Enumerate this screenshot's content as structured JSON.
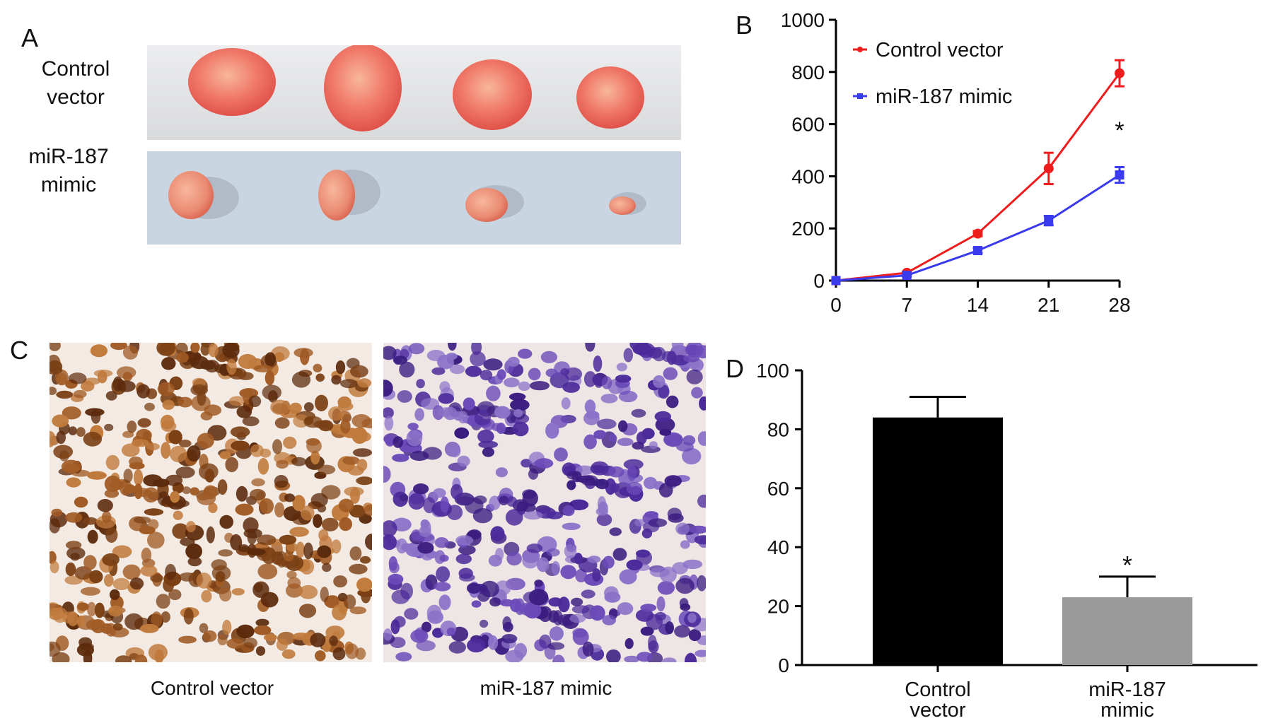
{
  "panels": {
    "a": {
      "letter": "A",
      "row_labels": [
        {
          "line1": "Control",
          "line2": "vector"
        },
        {
          "line1": "miR-187",
          "line2": "mimic"
        }
      ]
    },
    "b": {
      "letter": "B",
      "significance": "*"
    },
    "c": {
      "letter": "C",
      "captions": [
        "Control vector",
        "miR-187 mimic"
      ],
      "colors": {
        "brown_stain": "#7a3f14",
        "purple_stain": "#4b2a9a"
      }
    },
    "d": {
      "letter": "D",
      "significance": "*"
    }
  },
  "chart_data": [
    {
      "type": "line",
      "panel": "B",
      "x": [
        0,
        7,
        14,
        21,
        28
      ],
      "xticks": [
        "0",
        "7",
        "14",
        "21",
        "28"
      ],
      "yticks": [
        "0",
        "200",
        "400",
        "600",
        "800",
        "1000"
      ],
      "ylim": [
        0,
        1000
      ],
      "xlim": [
        0,
        28
      ],
      "series": [
        {
          "name": "Control vector",
          "values": [
            0,
            30,
            180,
            430,
            795
          ],
          "errors": [
            0,
            5,
            10,
            60,
            50
          ],
          "color": "#ee1c1c",
          "marker": "circle"
        },
        {
          "name": "miR-187 mimic",
          "values": [
            0,
            20,
            115,
            230,
            405
          ],
          "errors": [
            0,
            4,
            10,
            18,
            30
          ],
          "color": "#3b3bee",
          "marker": "square"
        }
      ],
      "legend_placement": "top-left",
      "annotation": "*"
    },
    {
      "type": "bar",
      "panel": "D",
      "categories": [
        {
          "line1": "Control",
          "line2": "vector"
        },
        {
          "line1": "miR-187",
          "line2": "mimic"
        }
      ],
      "values": [
        84,
        23
      ],
      "errors": [
        7,
        7
      ],
      "colors": [
        "#000000",
        "#9a9a9a"
      ],
      "yticks": [
        "0",
        "20",
        "40",
        "60",
        "80",
        "100"
      ],
      "ylim": [
        0,
        100
      ],
      "annotation": "*"
    }
  ]
}
